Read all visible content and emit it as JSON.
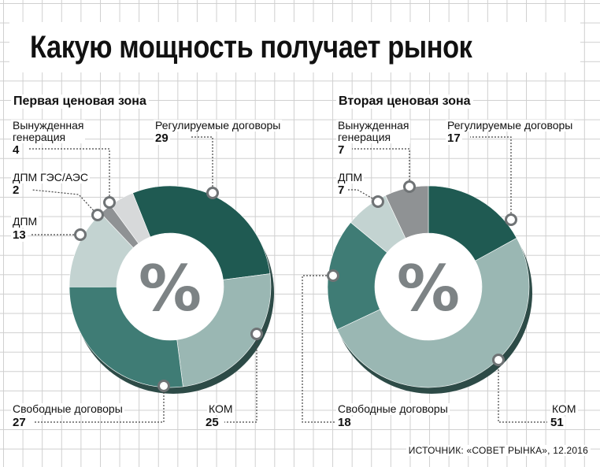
{
  "title": "Какую мощность получает рынок",
  "source": "ИСТОЧНИК: «СОВЕТ РЫНКА», 12.2016",
  "percent_symbol": "%",
  "colors": {
    "dark_green": "#1f5a52",
    "teal": "#3f7c75",
    "light_teal": "#9ab7b3",
    "pale": "#c3d3d1",
    "gray": "#8f9294",
    "light_gray": "#d7d9da"
  },
  "chart_data": [
    {
      "type": "pie",
      "subtype": "donut",
      "title": "Первая ценовая зона",
      "categories": [
        "Регулируемые договоры",
        "КОМ",
        "Свободные договоры",
        "ДПМ",
        "ДПМ ГЭС/АЭС",
        "Вынужденная генерация"
      ],
      "values": [
        29,
        25,
        27,
        13,
        2,
        4
      ],
      "labels": [
        {
          "name": "Регулируемые договоры",
          "value": "29"
        },
        {
          "name": "КОМ",
          "value": "25"
        },
        {
          "name": "Свободные договоры",
          "value": "27"
        },
        {
          "name": "ДПМ",
          "value": "13"
        },
        {
          "name": "ДПМ ГЭС/АЭС",
          "value": "2"
        },
        {
          "name": "Вынужденная\nгенерация",
          "value": "4"
        }
      ],
      "colors": [
        "#1f5a52",
        "#9ab7b3",
        "#3f7c75",
        "#c3d3d1",
        "#8f9294",
        "#d7d9da"
      ]
    },
    {
      "type": "pie",
      "subtype": "donut",
      "title": "Вторая ценовая зона",
      "categories": [
        "Регулируемые договоры",
        "КОМ",
        "Свободные договоры",
        "ДПМ",
        "Вынужденная генерация"
      ],
      "values": [
        17,
        51,
        18,
        7,
        7
      ],
      "labels": [
        {
          "name": "Регулируемые договоры",
          "value": "17"
        },
        {
          "name": "КОМ",
          "value": "51"
        },
        {
          "name": "Свободные договоры",
          "value": "18"
        },
        {
          "name": "ДПМ",
          "value": "7"
        },
        {
          "name": "Вынужденная\nгенерация",
          "value": "7"
        }
      ],
      "colors": [
        "#1f5a52",
        "#9ab7b3",
        "#3f7c75",
        "#c3d3d1",
        "#8f9294"
      ]
    }
  ]
}
